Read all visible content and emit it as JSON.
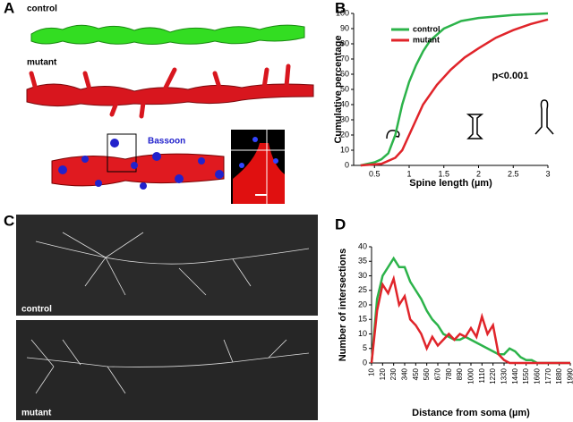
{
  "panel_labels": [
    "A",
    "B",
    "C",
    "D"
  ],
  "panel_a": {
    "labels": [
      "control",
      "mutant"
    ],
    "stain": "Bassoon"
  },
  "panel_c": {
    "labels": [
      "control",
      "mutant"
    ]
  },
  "chart_data": [
    {
      "type": "line",
      "xlabel": "Spine length (µm)",
      "ylabel": "Cumulative percentage",
      "annotation": "p<0.001",
      "legend": "upper left",
      "xlim": [
        0.2,
        3
      ],
      "xticks": [
        0.5,
        1,
        1.5,
        2,
        2.5,
        3
      ],
      "ylim": [
        0,
        100
      ],
      "yticks": [
        0,
        10,
        20,
        30,
        40,
        50,
        60,
        70,
        80,
        90,
        100
      ],
      "series": [
        {
          "name": "control",
          "color": "#2cb34a",
          "x": [
            0.3,
            0.5,
            0.6,
            0.7,
            0.8,
            0.9,
            1.0,
            1.1,
            1.2,
            1.3,
            1.5,
            1.75,
            2,
            2.5,
            3
          ],
          "values": [
            0,
            2,
            4,
            8,
            20,
            40,
            55,
            66,
            75,
            82,
            90,
            95,
            97,
            99,
            100
          ]
        },
        {
          "name": "mutant",
          "color": "#e0242a",
          "x": [
            0.3,
            0.6,
            0.8,
            0.9,
            1.0,
            1.1,
            1.2,
            1.4,
            1.6,
            1.8,
            2.0,
            2.25,
            2.5,
            2.75,
            3
          ],
          "values": [
            0,
            1,
            5,
            10,
            20,
            30,
            40,
            53,
            63,
            71,
            77,
            84,
            89,
            93,
            96
          ]
        }
      ]
    },
    {
      "type": "line",
      "xlabel": "Distance from soma (µm)",
      "ylabel": "Number of intersections",
      "xlim": [
        10,
        1990
      ],
      "xticks": [
        10,
        120,
        230,
        340,
        450,
        560,
        670,
        780,
        890,
        1000,
        1110,
        1220,
        1330,
        1440,
        1550,
        1660,
        1770,
        1880,
        1990
      ],
      "ylim": [
        0,
        40
      ],
      "yticks": [
        0,
        5,
        10,
        15,
        20,
        25,
        30,
        35,
        40
      ],
      "x": [
        10,
        65,
        120,
        175,
        230,
        285,
        340,
        395,
        450,
        505,
        560,
        615,
        670,
        725,
        780,
        835,
        890,
        945,
        1000,
        1055,
        1110,
        1165,
        1220,
        1275,
        1330,
        1385,
        1440,
        1495,
        1550,
        1605,
        1660,
        1715,
        1770,
        1825,
        1880,
        1935,
        1990
      ],
      "series": [
        {
          "name": "control",
          "color": "#2cb34a",
          "values": [
            0,
            22,
            30,
            33,
            36,
            33,
            33,
            28,
            25,
            22,
            18,
            15,
            13,
            10,
            9,
            8,
            8,
            9,
            8,
            7,
            6,
            5,
            4,
            3,
            3,
            5,
            4,
            2,
            1,
            1,
            0,
            0,
            0,
            0,
            0,
            0,
            0
          ]
        },
        {
          "name": "mutant",
          "color": "#e0242a",
          "values": [
            0,
            18,
            27,
            24,
            29,
            20,
            23,
            15,
            13,
            10,
            5,
            9,
            6,
            8,
            10,
            8,
            10,
            9,
            12,
            9,
            16,
            10,
            13,
            3,
            1,
            0,
            0,
            0,
            0,
            0,
            0,
            0,
            0,
            0,
            0,
            0,
            0
          ]
        }
      ]
    }
  ]
}
